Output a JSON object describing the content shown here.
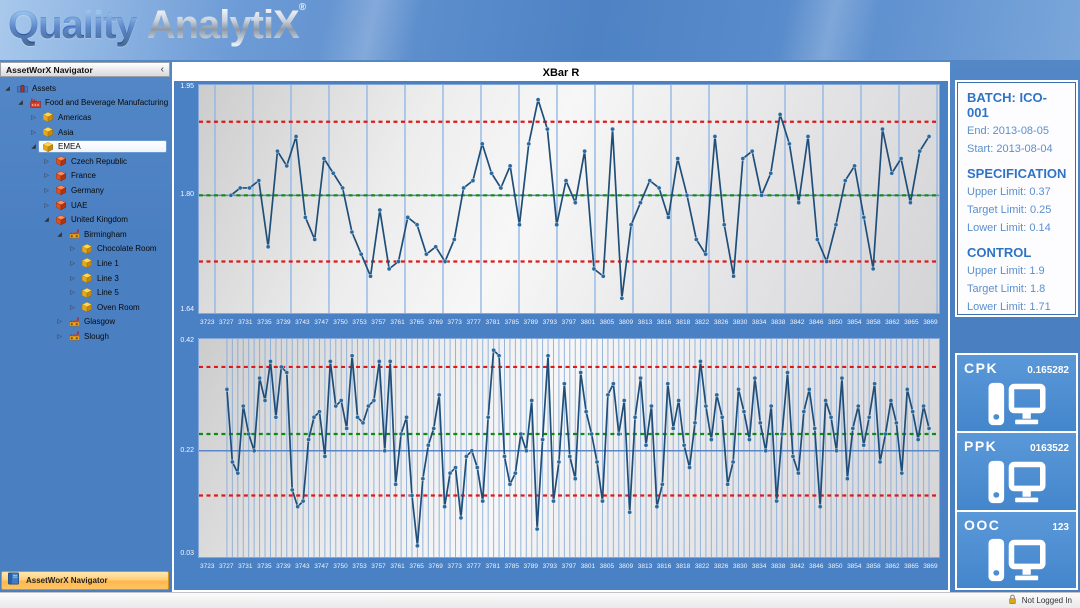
{
  "header": {
    "logo_quality": "Quality",
    "logo_analytix": "AnalytiX",
    "logo_reg": "®"
  },
  "navigator": {
    "title": "AssetWorX Navigator",
    "collapse_icon": "‹",
    "bottom_button": "AssetWorX Navigator",
    "tree": [
      {
        "label": "Assets",
        "depth": 0,
        "icon": "building",
        "state": "expanded",
        "selected": false
      },
      {
        "label": "Food and Beverage Manufacturing",
        "depth": 1,
        "icon": "factory",
        "state": "expanded",
        "selected": false
      },
      {
        "label": "Americas",
        "depth": 2,
        "icon": "region-cube",
        "state": "collapsed",
        "selected": false
      },
      {
        "label": "Asia",
        "depth": 2,
        "icon": "region-cube",
        "state": "collapsed",
        "selected": false
      },
      {
        "label": "EMEA",
        "depth": 2,
        "icon": "region-cube",
        "state": "expanded",
        "selected": true
      },
      {
        "label": "Czech Republic",
        "depth": 3,
        "icon": "site-cube",
        "state": "collapsed",
        "selected": false
      },
      {
        "label": "France",
        "depth": 3,
        "icon": "site-cube",
        "state": "collapsed",
        "selected": false
      },
      {
        "label": "Germany",
        "depth": 3,
        "icon": "site-cube",
        "state": "collapsed",
        "selected": false
      },
      {
        "label": "UAE",
        "depth": 3,
        "icon": "site-cube",
        "state": "collapsed",
        "selected": false
      },
      {
        "label": "United Kingdom",
        "depth": 3,
        "icon": "site-cube",
        "state": "expanded",
        "selected": false
      },
      {
        "label": "Birmingham",
        "depth": 4,
        "icon": "plant",
        "state": "expanded",
        "selected": false
      },
      {
        "label": "Chocolate Room",
        "depth": 5,
        "icon": "line-cube",
        "state": "collapsed",
        "selected": false
      },
      {
        "label": "Line 1",
        "depth": 5,
        "icon": "line-cube",
        "state": "collapsed",
        "selected": false
      },
      {
        "label": "Line 3",
        "depth": 5,
        "icon": "line-cube",
        "state": "collapsed",
        "selected": false
      },
      {
        "label": "Line 5",
        "depth": 5,
        "icon": "line-cube",
        "state": "collapsed",
        "selected": false
      },
      {
        "label": "Oven Room",
        "depth": 5,
        "icon": "line-cube",
        "state": "collapsed",
        "selected": false
      },
      {
        "label": "Glasgow",
        "depth": 4,
        "icon": "plant",
        "state": "collapsed",
        "selected": false
      },
      {
        "label": "Slough",
        "depth": 4,
        "icon": "plant",
        "state": "collapsed",
        "selected": false
      }
    ]
  },
  "chart_panel": {
    "title": "XBar R"
  },
  "chart_data": [
    {
      "type": "line",
      "name": "XBar chart",
      "ylim": [
        1.64,
        1.95
      ],
      "ytick_labels": [
        "1.95",
        "1.80",
        "1.64"
      ],
      "ytick_mid_value": 1.8,
      "upper_limit": 1.9,
      "target": 1.8,
      "lower_limit": 1.71,
      "mean_line": 1.8,
      "grid": "sparse",
      "x_labels": [
        "3723",
        "3727",
        "3731",
        "3735",
        "3739",
        "3743",
        "3747",
        "3750",
        "3753",
        "3757",
        "3761",
        "3765",
        "3769",
        "3773",
        "3777",
        "3781",
        "3785",
        "3789",
        "3793",
        "3797",
        "3801",
        "3805",
        "3809",
        "3813",
        "3816",
        "3818",
        "3822",
        "3826",
        "3830",
        "3834",
        "3838",
        "3842",
        "3846",
        "3850",
        "3854",
        "3858",
        "3862",
        "3865",
        "3869"
      ],
      "values": [
        1.8,
        1.81,
        1.81,
        1.82,
        1.73,
        1.86,
        1.84,
        1.88,
        1.77,
        1.74,
        1.85,
        1.83,
        1.81,
        1.75,
        1.72,
        1.69,
        1.78,
        1.7,
        1.71,
        1.77,
        1.76,
        1.72,
        1.73,
        1.71,
        1.74,
        1.81,
        1.82,
        1.87,
        1.83,
        1.81,
        1.84,
        1.76,
        1.87,
        1.93,
        1.89,
        1.76,
        1.82,
        1.79,
        1.86,
        1.7,
        1.69,
        1.89,
        1.66,
        1.76,
        1.79,
        1.82,
        1.81,
        1.77,
        1.85,
        1.8,
        1.74,
        1.72,
        1.88,
        1.76,
        1.69,
        1.85,
        1.86,
        1.8,
        1.83,
        1.91,
        1.87,
        1.79,
        1.88,
        1.74,
        1.71,
        1.76,
        1.82,
        1.84,
        1.77,
        1.7,
        1.89,
        1.83,
        1.85,
        1.79,
        1.86,
        1.88
      ]
    },
    {
      "type": "line",
      "name": "Range chart",
      "ylim": [
        0.03,
        0.42
      ],
      "ytick_labels": [
        "0.42",
        "0.22",
        "0.03"
      ],
      "ytick_mid_value": 0.22,
      "upper_limit": 0.37,
      "target": 0.25,
      "lower_limit": 0.14,
      "mean_line": 0.22,
      "grid": "dense",
      "x_labels": [
        "3723",
        "3727",
        "3731",
        "3735",
        "3739",
        "3743",
        "3747",
        "3750",
        "3753",
        "3757",
        "3761",
        "3765",
        "3769",
        "3773",
        "3777",
        "3781",
        "3785",
        "3789",
        "3793",
        "3797",
        "3801",
        "3805",
        "3809",
        "3813",
        "3816",
        "3818",
        "3822",
        "3826",
        "3830",
        "3834",
        "3838",
        "3842",
        "3846",
        "3850",
        "3854",
        "3858",
        "3862",
        "3865",
        "3869"
      ],
      "values": [
        0.33,
        0.2,
        0.18,
        0.3,
        0.25,
        0.22,
        0.35,
        0.31,
        0.38,
        0.28,
        0.37,
        0.36,
        0.15,
        0.12,
        0.13,
        0.24,
        0.28,
        0.29,
        0.21,
        0.38,
        0.3,
        0.31,
        0.26,
        0.39,
        0.28,
        0.27,
        0.3,
        0.31,
        0.38,
        0.22,
        0.38,
        0.16,
        0.25,
        0.28,
        0.14,
        0.05,
        0.17,
        0.23,
        0.26,
        0.32,
        0.12,
        0.18,
        0.19,
        0.1,
        0.21,
        0.22,
        0.19,
        0.13,
        0.28,
        0.4,
        0.39,
        0.21,
        0.16,
        0.18,
        0.25,
        0.22,
        0.31,
        0.08,
        0.24,
        0.39,
        0.13,
        0.2,
        0.34,
        0.21,
        0.17,
        0.36,
        0.29,
        0.25,
        0.2,
        0.13,
        0.32,
        0.34,
        0.25,
        0.31,
        0.11,
        0.28,
        0.35,
        0.23,
        0.3,
        0.12,
        0.16,
        0.34,
        0.26,
        0.31,
        0.23,
        0.19,
        0.27,
        0.38,
        0.3,
        0.24,
        0.32,
        0.28,
        0.16,
        0.2,
        0.33,
        0.29,
        0.24,
        0.35,
        0.27,
        0.22,
        0.3,
        0.13,
        0.25,
        0.36,
        0.21,
        0.18,
        0.29,
        0.33,
        0.26,
        0.12,
        0.31,
        0.28,
        0.22,
        0.35,
        0.17,
        0.26,
        0.3,
        0.23,
        0.28,
        0.34,
        0.2,
        0.25,
        0.31,
        0.27,
        0.18,
        0.33,
        0.29,
        0.24,
        0.3,
        0.26
      ]
    }
  ],
  "info_panel": {
    "batch_title": "BATCH: ICO-001",
    "end": "End: 2013-08-05",
    "start": "Start: 2013-08-04",
    "spec_title": "SPECIFICATION",
    "spec_upper": "Upper Limit: 0.37",
    "spec_target": "Target Limit: 0.25",
    "spec_lower": "Lower Limit: 0.14",
    "control_title": "CONTROL",
    "control_upper": "Upper Limit: 1.9",
    "control_target": "Target Limit: 1.8",
    "control_lower": "Lower Limit: 1.71"
  },
  "kpi_tiles": [
    {
      "label": "CPK",
      "value": "0.165282",
      "icon": "computer-icon"
    },
    {
      "label": "PPK",
      "value": "0163522",
      "icon": "computer-icon"
    },
    {
      "label": "OOC",
      "value": "123",
      "icon": "computer-icon"
    }
  ],
  "status_bar": {
    "text": "Not Logged In",
    "icon": "lock-icon"
  },
  "colors": {
    "app_background": "#4a80c4",
    "accent_blue": "#2f74c4",
    "kpi_tile_blue": "#4a8ed2",
    "series_line": "#1f4e79",
    "limit_red": "#e01818",
    "target_green": "#0f8a10",
    "nav_button_orange": "#ffc05c"
  }
}
